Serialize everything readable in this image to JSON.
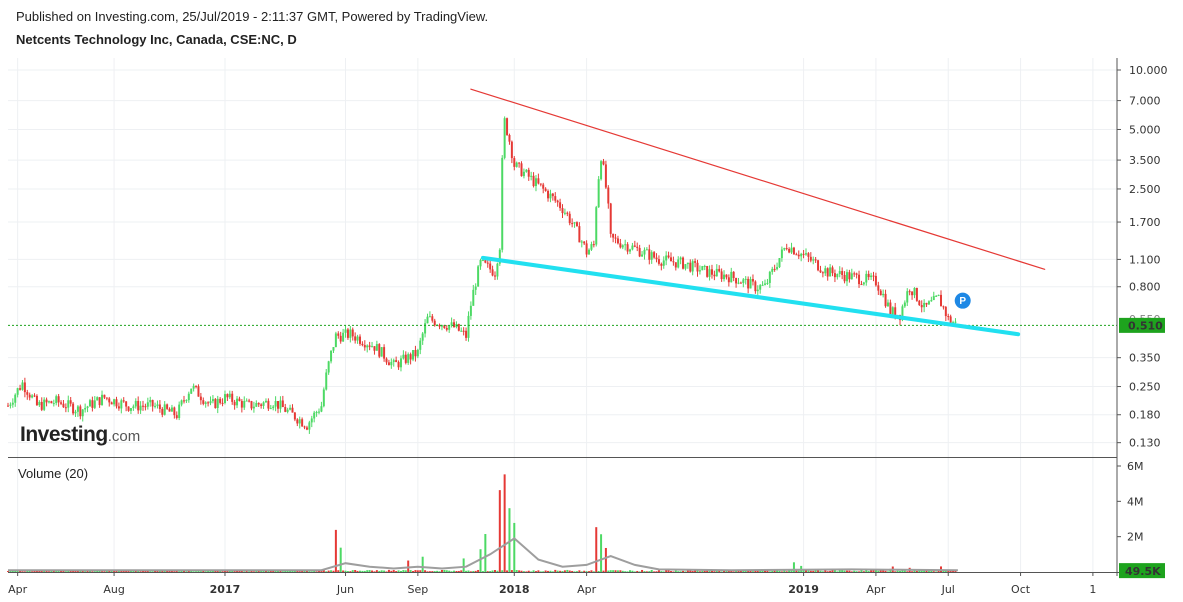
{
  "header": {
    "published": "Published on Investing.com, 25/Jul/2019 - 2:11:37 GMT, Powered by TradingView.",
    "symbol": "Netcents Technology Inc, Canada, CSE:NC, D"
  },
  "logo": {
    "brand": "Investing",
    "suffix": ".com"
  },
  "marker": {
    "label": "P"
  },
  "colors": {
    "up": "#4cd964",
    "down": "#e53935",
    "resistance_line": "#e53935",
    "support_line": "#21e0f0",
    "last_price_bg": "#1ea31e",
    "volume_ma": "#9e9e9e"
  },
  "chart_data": {
    "type": "candlestick",
    "scale": "log",
    "price_ticks": [
      "10.000",
      "7.000",
      "5.000",
      "3.500",
      "2.500",
      "1.700",
      "1.100",
      "0.800",
      "0.350",
      "0.250",
      "0.180",
      "0.130"
    ],
    "hidden_tick": "0.550",
    "price_range": [
      0.11,
      11.5
    ],
    "last_price": {
      "label": "0.510",
      "value": 0.51
    },
    "x_ticks": [
      {
        "label": "Apr",
        "bold": false,
        "t": 0.4
      },
      {
        "label": "Aug",
        "bold": false,
        "t": 4.4
      },
      {
        "label": "2017",
        "bold": true,
        "t": 9.0
      },
      {
        "label": "Jun",
        "bold": false,
        "t": 14.0
      },
      {
        "label": "Sep",
        "bold": false,
        "t": 17.0
      },
      {
        "label": "2018",
        "bold": true,
        "t": 21.0
      },
      {
        "label": "Apr",
        "bold": false,
        "t": 24.0
      },
      {
        "label": "2019",
        "bold": true,
        "t": 33.0
      },
      {
        "label": "Apr",
        "bold": false,
        "t": 36.0
      },
      {
        "label": "Jul",
        "bold": false,
        "t": 39.0
      },
      {
        "label": "Oct",
        "bold": false,
        "t": 42.0
      },
      {
        "label": "1",
        "bold": false,
        "t": 45.0
      }
    ],
    "price_path": [
      [
        0,
        0.2
      ],
      [
        0.6,
        0.26
      ],
      [
        1.2,
        0.2
      ],
      [
        2,
        0.21
      ],
      [
        3,
        0.19
      ],
      [
        4,
        0.22
      ],
      [
        5,
        0.2
      ],
      [
        6,
        0.2
      ],
      [
        7,
        0.18
      ],
      [
        7.6,
        0.25
      ],
      [
        8.4,
        0.2
      ],
      [
        9,
        0.22
      ],
      [
        10,
        0.2
      ],
      [
        11,
        0.21
      ],
      [
        11.8,
        0.18
      ],
      [
        12.4,
        0.16
      ],
      [
        13,
        0.2
      ],
      [
        13.6,
        0.45
      ],
      [
        14.2,
        0.46
      ],
      [
        15.2,
        0.4
      ],
      [
        16,
        0.32
      ],
      [
        17,
        0.37
      ],
      [
        17.4,
        0.55
      ],
      [
        18.5,
        0.5
      ],
      [
        19,
        0.45
      ],
      [
        19.6,
        1.05
      ],
      [
        20.2,
        0.95
      ],
      [
        20.4,
        1.3
      ],
      [
        20.6,
        5.5
      ],
      [
        21,
        3.3
      ],
      [
        22,
        2.6
      ],
      [
        23,
        2.0
      ],
      [
        24,
        1.2
      ],
      [
        24.3,
        1.3
      ],
      [
        24.6,
        3.7
      ],
      [
        25,
        1.4
      ],
      [
        26,
        1.25
      ],
      [
        27,
        1.1
      ],
      [
        28,
        1.05
      ],
      [
        29,
        0.95
      ],
      [
        30,
        0.9
      ],
      [
        31,
        0.8
      ],
      [
        31.4,
        0.8
      ],
      [
        31.8,
        1.0
      ],
      [
        32.3,
        1.3
      ],
      [
        33,
        1.15
      ],
      [
        34,
        0.95
      ],
      [
        35,
        0.9
      ],
      [
        36,
        0.85
      ],
      [
        36.6,
        0.6
      ],
      [
        37,
        0.58
      ],
      [
        37.4,
        0.8
      ],
      [
        38,
        0.62
      ],
      [
        38.6,
        0.7
      ],
      [
        39,
        0.55
      ],
      [
        39.4,
        0.51
      ]
    ],
    "volume_ticks": [
      "6M",
      "4M",
      "2M"
    ],
    "volume_last": {
      "label": "49.5K",
      "value": 49500
    },
    "volume_range": [
      0,
      6000000
    ],
    "volume_spikes": [
      [
        13.6,
        2200000
      ],
      [
        13.8,
        1700000
      ],
      [
        16.6,
        600000
      ],
      [
        17.2,
        800000
      ],
      [
        18.9,
        700000
      ],
      [
        19.6,
        1500000
      ],
      [
        19.8,
        2600000
      ],
      [
        20.4,
        4700000
      ],
      [
        20.6,
        5500000
      ],
      [
        20.8,
        3800000
      ],
      [
        21.0,
        2600000
      ],
      [
        24.4,
        3000000
      ],
      [
        24.6,
        2200000
      ],
      [
        24.8,
        1300000
      ],
      [
        32.6,
        550000
      ],
      [
        32.9,
        350000
      ],
      [
        36.7,
        300000
      ],
      [
        37.4,
        250000
      ],
      [
        38.7,
        300000
      ]
    ],
    "volume_ma_path": [
      [
        0,
        100000
      ],
      [
        13,
        100000
      ],
      [
        14,
        500000
      ],
      [
        15,
        300000
      ],
      [
        16,
        200000
      ],
      [
        17,
        300000
      ],
      [
        18,
        200000
      ],
      [
        19,
        300000
      ],
      [
        20,
        1000000
      ],
      [
        21,
        1900000
      ],
      [
        22,
        700000
      ],
      [
        23,
        300000
      ],
      [
        24,
        400000
      ],
      [
        25,
        900000
      ],
      [
        26,
        400000
      ],
      [
        27,
        150000
      ],
      [
        30,
        100000
      ],
      [
        35,
        150000
      ],
      [
        39.4,
        100000
      ]
    ],
    "trendlines": [
      {
        "name": "resistance",
        "from": [
          19.2,
          8.0
        ],
        "to": [
          43.0,
          0.98
        ]
      },
      {
        "name": "support",
        "from": [
          19.7,
          1.12
        ],
        "to": [
          41.9,
          0.46
        ]
      }
    ]
  }
}
